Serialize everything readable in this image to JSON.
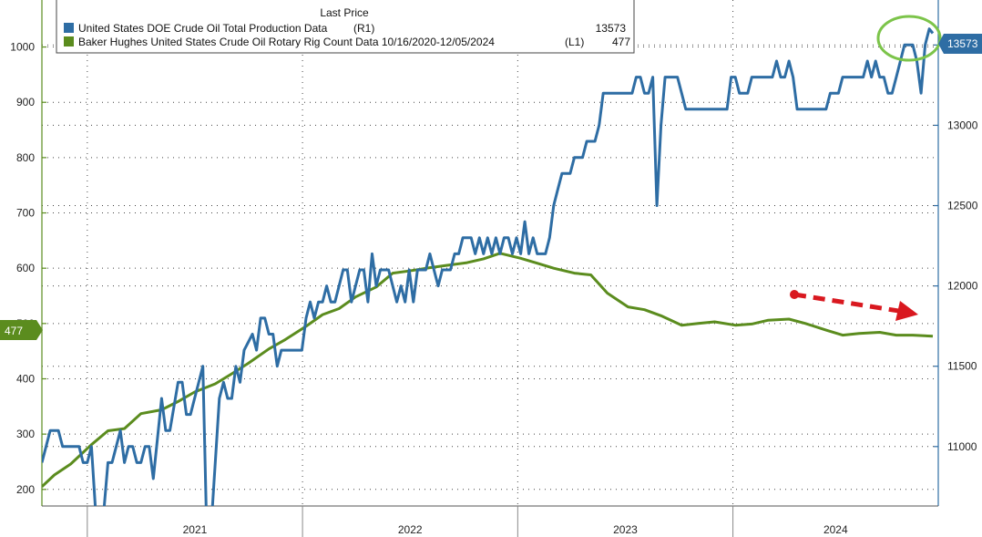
{
  "legend": {
    "header": "Last Price",
    "entries": [
      {
        "name": "United States DOE Crude Oil Total Production Data",
        "axis": "(R1)",
        "last": "13573",
        "color": "#2e6da4"
      },
      {
        "name": "Baker Hughes United States Crude Oil Rotary Rig Count Data 10/16/2020-12/05/2024",
        "axis": "(L1)",
        "last": "477",
        "color": "#5b8c1e"
      }
    ]
  },
  "flags": {
    "left": "477",
    "right": "13573"
  },
  "chart_data": {
    "type": "line",
    "x_range": [
      "2020-10-16",
      "2024-12-05"
    ],
    "x_tick_labels": [
      "2021",
      "2022",
      "2023",
      "2024"
    ],
    "y_left": {
      "ticks": [
        200,
        300,
        400,
        500,
        600,
        700,
        800,
        900,
        1000
      ],
      "range": [
        170,
        1085
      ]
    },
    "y_right": {
      "ticks": [
        11000,
        11500,
        12000,
        12500,
        13000,
        13500
      ],
      "range": [
        10630,
        13780
      ]
    },
    "grid": true,
    "legend_position": "top-left",
    "series": [
      {
        "name": "United States DOE Crude Oil Total Production Data",
        "axis": "right",
        "color": "#2e6da4",
        "points": [
          [
            "2020-10-16",
            10900
          ],
          [
            "2020-10-30",
            11100
          ],
          [
            "2020-11-13",
            11100
          ],
          [
            "2020-11-20",
            11000
          ],
          [
            "2020-12-04",
            11000
          ],
          [
            "2020-12-18",
            11000
          ],
          [
            "2020-12-25",
            10900
          ],
          [
            "2021-01-01",
            10900
          ],
          [
            "2021-01-08",
            11000
          ],
          [
            "2021-01-15",
            10600
          ],
          [
            "2021-01-29",
            10600
          ],
          [
            "2021-02-05",
            10900
          ],
          [
            "2021-02-12",
            10900
          ],
          [
            "2021-02-19",
            11000
          ],
          [
            "2021-02-26",
            11100
          ],
          [
            "2021-03-05",
            10900
          ],
          [
            "2021-03-12",
            11000
          ],
          [
            "2021-03-19",
            11000
          ],
          [
            "2021-03-26",
            10900
          ],
          [
            "2021-04-02",
            10900
          ],
          [
            "2021-04-09",
            11000
          ],
          [
            "2021-04-16",
            11000
          ],
          [
            "2021-04-23",
            10800
          ],
          [
            "2021-05-07",
            11300
          ],
          [
            "2021-05-14",
            11100
          ],
          [
            "2021-05-21",
            11100
          ],
          [
            "2021-06-04",
            11400
          ],
          [
            "2021-06-11",
            11400
          ],
          [
            "2021-06-18",
            11200
          ],
          [
            "2021-06-25",
            11200
          ],
          [
            "2021-07-02",
            11300
          ],
          [
            "2021-07-09",
            11400
          ],
          [
            "2021-07-16",
            11500
          ],
          [
            "2021-07-23",
            10400
          ],
          [
            "2021-07-30",
            10500
          ],
          [
            "2021-08-13",
            11300
          ],
          [
            "2021-08-20",
            11400
          ],
          [
            "2021-08-27",
            11300
          ],
          [
            "2021-09-03",
            11300
          ],
          [
            "2021-09-10",
            11500
          ],
          [
            "2021-09-17",
            11400
          ],
          [
            "2021-09-24",
            11600
          ],
          [
            "2021-10-08",
            11700
          ],
          [
            "2021-10-15",
            11600
          ],
          [
            "2021-10-22",
            11800
          ],
          [
            "2021-10-29",
            11800
          ],
          [
            "2021-11-05",
            11700
          ],
          [
            "2021-11-12",
            11700
          ],
          [
            "2021-11-19",
            11500
          ],
          [
            "2021-11-26",
            11600
          ],
          [
            "2021-12-03",
            11600
          ],
          [
            "2021-12-17",
            11600
          ],
          [
            "2021-12-31",
            11600
          ],
          [
            "2022-01-07",
            11800
          ],
          [
            "2022-01-14",
            11900
          ],
          [
            "2022-01-21",
            11800
          ],
          [
            "2022-01-28",
            11900
          ],
          [
            "2022-02-04",
            11900
          ],
          [
            "2022-02-11",
            12000
          ],
          [
            "2022-02-18",
            11900
          ],
          [
            "2022-02-25",
            11900
          ],
          [
            "2022-03-04",
            12000
          ],
          [
            "2022-03-11",
            12100
          ],
          [
            "2022-03-18",
            12100
          ],
          [
            "2022-03-25",
            11900
          ],
          [
            "2022-04-01",
            12000
          ],
          [
            "2022-04-08",
            12100
          ],
          [
            "2022-04-15",
            12100
          ],
          [
            "2022-04-22",
            11900
          ],
          [
            "2022-04-29",
            12200
          ],
          [
            "2022-05-06",
            12000
          ],
          [
            "2022-05-13",
            12100
          ],
          [
            "2022-05-20",
            12100
          ],
          [
            "2022-05-27",
            12100
          ],
          [
            "2022-06-03",
            12000
          ],
          [
            "2022-06-10",
            11900
          ],
          [
            "2022-06-17",
            12000
          ],
          [
            "2022-06-24",
            11900
          ],
          [
            "2022-07-01",
            12100
          ],
          [
            "2022-07-08",
            11900
          ],
          [
            "2022-07-15",
            12100
          ],
          [
            "2022-07-22",
            12100
          ],
          [
            "2022-07-29",
            12100
          ],
          [
            "2022-08-05",
            12200
          ],
          [
            "2022-08-12",
            12100
          ],
          [
            "2022-08-19",
            12000
          ],
          [
            "2022-08-26",
            12100
          ],
          [
            "2022-09-02",
            12100
          ],
          [
            "2022-09-09",
            12100
          ],
          [
            "2022-09-16",
            12200
          ],
          [
            "2022-09-23",
            12200
          ],
          [
            "2022-09-30",
            12300
          ],
          [
            "2022-10-07",
            12300
          ],
          [
            "2022-10-14",
            12300
          ],
          [
            "2022-10-21",
            12200
          ],
          [
            "2022-10-28",
            12300
          ],
          [
            "2022-11-04",
            12200
          ],
          [
            "2022-11-11",
            12300
          ],
          [
            "2022-11-18",
            12200
          ],
          [
            "2022-11-25",
            12300
          ],
          [
            "2022-12-02",
            12200
          ],
          [
            "2022-12-09",
            12300
          ],
          [
            "2022-12-16",
            12300
          ],
          [
            "2022-12-23",
            12200
          ],
          [
            "2022-12-30",
            12300
          ],
          [
            "2023-01-06",
            12200
          ],
          [
            "2023-01-13",
            12400
          ],
          [
            "2023-01-20",
            12200
          ],
          [
            "2023-01-27",
            12300
          ],
          [
            "2023-02-03",
            12200
          ],
          [
            "2023-02-10",
            12200
          ],
          [
            "2023-02-17",
            12200
          ],
          [
            "2023-02-24",
            12300
          ],
          [
            "2023-03-03",
            12500
          ],
          [
            "2023-03-10",
            12600
          ],
          [
            "2023-03-17",
            12700
          ],
          [
            "2023-03-31",
            12700
          ],
          [
            "2023-04-07",
            12800
          ],
          [
            "2023-04-14",
            12800
          ],
          [
            "2023-04-21",
            12800
          ],
          [
            "2023-04-28",
            12900
          ],
          [
            "2023-05-05",
            12900
          ],
          [
            "2023-05-12",
            12900
          ],
          [
            "2023-05-19",
            13000
          ],
          [
            "2023-05-26",
            13200
          ],
          [
            "2023-06-02",
            13200
          ],
          [
            "2023-06-23",
            13200
          ],
          [
            "2023-07-07",
            13200
          ],
          [
            "2023-07-14",
            13200
          ],
          [
            "2023-07-21",
            13300
          ],
          [
            "2023-07-28",
            13300
          ],
          [
            "2023-08-04",
            13200
          ],
          [
            "2023-08-11",
            13200
          ],
          [
            "2023-08-18",
            13300
          ],
          [
            "2023-08-25",
            12500
          ],
          [
            "2023-09-01",
            13000
          ],
          [
            "2023-09-08",
            13300
          ],
          [
            "2023-09-15",
            13300
          ],
          [
            "2023-09-29",
            13300
          ],
          [
            "2023-10-06",
            13200
          ],
          [
            "2023-10-13",
            13100
          ],
          [
            "2023-10-20",
            13100
          ],
          [
            "2023-11-03",
            13100
          ],
          [
            "2023-11-17",
            13100
          ],
          [
            "2023-12-01",
            13100
          ],
          [
            "2023-12-15",
            13100
          ],
          [
            "2023-12-22",
            13100
          ],
          [
            "2023-12-29",
            13300
          ],
          [
            "2024-01-05",
            13300
          ],
          [
            "2024-01-12",
            13200
          ],
          [
            "2024-01-19",
            13200
          ],
          [
            "2024-01-26",
            13200
          ],
          [
            "2024-02-02",
            13300
          ],
          [
            "2024-02-09",
            13300
          ],
          [
            "2024-02-16",
            13300
          ],
          [
            "2024-02-23",
            13300
          ],
          [
            "2024-03-01",
            13300
          ],
          [
            "2024-03-08",
            13300
          ],
          [
            "2024-03-15",
            13400
          ],
          [
            "2024-03-22",
            13300
          ],
          [
            "2024-03-29",
            13300
          ],
          [
            "2024-04-05",
            13400
          ],
          [
            "2024-04-12",
            13300
          ],
          [
            "2024-04-19",
            13100
          ],
          [
            "2024-04-26",
            13100
          ],
          [
            "2024-05-03",
            13100
          ],
          [
            "2024-05-10",
            13100
          ],
          [
            "2024-05-17",
            13100
          ],
          [
            "2024-05-24",
            13100
          ],
          [
            "2024-05-31",
            13100
          ],
          [
            "2024-06-07",
            13100
          ],
          [
            "2024-06-14",
            13200
          ],
          [
            "2024-06-21",
            13200
          ],
          [
            "2024-06-28",
            13200
          ],
          [
            "2024-07-05",
            13300
          ],
          [
            "2024-07-12",
            13300
          ],
          [
            "2024-07-19",
            13300
          ],
          [
            "2024-07-26",
            13300
          ],
          [
            "2024-08-02",
            13300
          ],
          [
            "2024-08-09",
            13300
          ],
          [
            "2024-08-16",
            13400
          ],
          [
            "2024-08-23",
            13300
          ],
          [
            "2024-08-30",
            13400
          ],
          [
            "2024-09-06",
            13300
          ],
          [
            "2024-09-13",
            13300
          ],
          [
            "2024-09-20",
            13200
          ],
          [
            "2024-09-27",
            13200
          ],
          [
            "2024-10-04",
            13300
          ],
          [
            "2024-10-11",
            13400
          ],
          [
            "2024-10-18",
            13500
          ],
          [
            "2024-10-25",
            13500
          ],
          [
            "2024-11-01",
            13500
          ],
          [
            "2024-11-08",
            13400
          ],
          [
            "2024-11-15",
            13200
          ],
          [
            "2024-11-22",
            13500
          ],
          [
            "2024-11-29",
            13600
          ],
          [
            "2024-12-05",
            13573
          ]
        ]
      },
      {
        "name": "Baker Hughes United States Crude Oil Rotary Rig Count Data 10/16/2020-12/05/2024",
        "axis": "left",
        "color": "#5b8c1e",
        "points": [
          [
            "2020-10-16",
            205
          ],
          [
            "2020-11-06",
            226
          ],
          [
            "2020-12-04",
            246
          ],
          [
            "2021-01-08",
            281
          ],
          [
            "2021-02-05",
            306
          ],
          [
            "2021-03-05",
            310
          ],
          [
            "2021-04-02",
            337
          ],
          [
            "2021-05-07",
            344
          ],
          [
            "2021-06-04",
            359
          ],
          [
            "2021-07-02",
            376
          ],
          [
            "2021-08-06",
            391
          ],
          [
            "2021-09-03",
            409
          ],
          [
            "2021-10-01",
            428
          ],
          [
            "2021-11-05",
            454
          ],
          [
            "2021-12-03",
            471
          ],
          [
            "2022-01-07",
            495
          ],
          [
            "2022-02-04",
            516
          ],
          [
            "2022-03-04",
            527
          ],
          [
            "2022-04-01",
            548
          ],
          [
            "2022-05-06",
            566
          ],
          [
            "2022-06-03",
            591
          ],
          [
            "2022-07-01",
            595
          ],
          [
            "2022-08-05",
            601
          ],
          [
            "2022-09-02",
            605
          ],
          [
            "2022-10-07",
            610
          ],
          [
            "2022-11-04",
            617
          ],
          [
            "2022-12-02",
            627
          ],
          [
            "2023-01-06",
            618
          ],
          [
            "2023-02-03",
            609
          ],
          [
            "2023-03-03",
            600
          ],
          [
            "2023-04-07",
            591
          ],
          [
            "2023-05-05",
            588
          ],
          [
            "2023-06-02",
            555
          ],
          [
            "2023-07-07",
            530
          ],
          [
            "2023-08-04",
            525
          ],
          [
            "2023-09-01",
            514
          ],
          [
            "2023-10-06",
            497
          ],
          [
            "2023-11-03",
            500
          ],
          [
            "2023-12-01",
            503
          ],
          [
            "2024-01-05",
            497
          ],
          [
            "2024-02-02",
            499
          ],
          [
            "2024-03-01",
            506
          ],
          [
            "2024-04-05",
            508
          ],
          [
            "2024-05-03",
            500
          ],
          [
            "2024-06-07",
            488
          ],
          [
            "2024-07-05",
            479
          ],
          [
            "2024-08-02",
            482
          ],
          [
            "2024-09-06",
            484
          ],
          [
            "2024-10-04",
            479
          ],
          [
            "2024-11-01",
            479
          ],
          [
            "2024-12-05",
            477
          ]
        ]
      }
    ]
  }
}
